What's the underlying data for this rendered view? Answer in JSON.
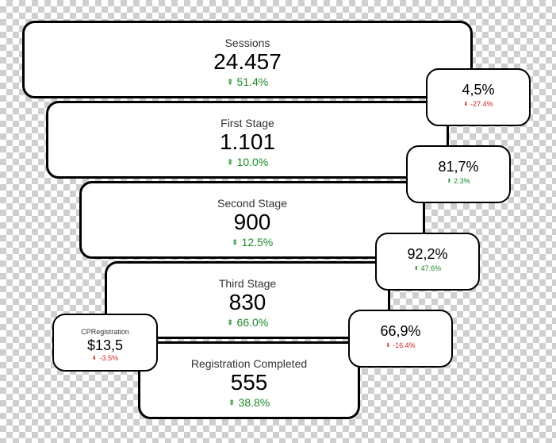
{
  "stages": [
    {
      "label": "Sessions",
      "value": "24.457",
      "change": "51.4%",
      "direction": "up"
    },
    {
      "label": "First Stage",
      "value": "1.101",
      "change": "10.0%",
      "direction": "up"
    },
    {
      "label": "Second Stage",
      "value": "900",
      "change": "12.5%",
      "direction": "up"
    },
    {
      "label": "Third Stage",
      "value": "830",
      "change": "66.0%",
      "direction": "up"
    },
    {
      "label": "Registration Completed",
      "value": "555",
      "change": "38.8%",
      "direction": "up"
    }
  ],
  "conversion_rates": [
    {
      "value": "4,5%",
      "change": "-27.4%",
      "direction": "down"
    },
    {
      "value": "81,7%",
      "change": "2.3%",
      "direction": "up"
    },
    {
      "value": "92,2%",
      "change": "47.6%",
      "direction": "up"
    },
    {
      "value": "66,9%",
      "change": "-16.4%",
      "direction": "down"
    }
  ],
  "cp_registration": {
    "label": "CPRegistration",
    "value": "$13,5",
    "change": "-3.5%",
    "direction": "down"
  },
  "colors": {
    "up": "#1a8a2a",
    "down": "#d42020"
  },
  "icons": {
    "up": "arrow-up-icon",
    "down": "arrow-down-icon"
  }
}
